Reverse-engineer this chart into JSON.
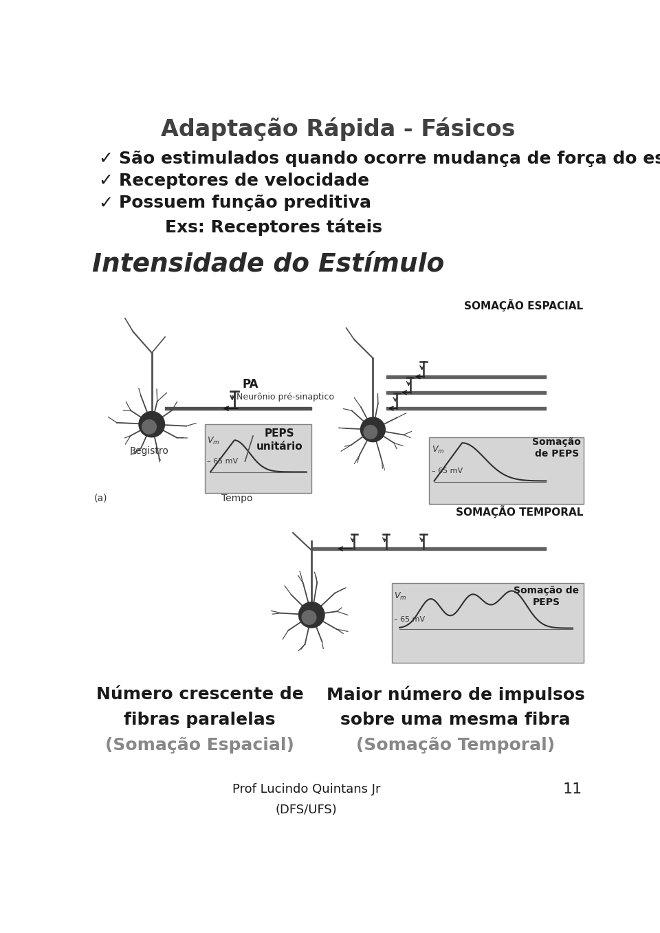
{
  "title": "Adaptação Rápida - Fásicos",
  "bullet1": "São estimulados quando ocorre mudança de força do estímulo",
  "bullet2": "Receptores de velocidade",
  "bullet3": "Possuem função preditiva",
  "sub_bullet": "Exs: Receptores táteis",
  "section_title": "Intensidade do Estímulo",
  "bottom_left_line1": "Número crescente de",
  "bottom_left_line2": "fibras paralelas",
  "bottom_left_line3": "(Somação Espacial)",
  "bottom_right_line1": "Maior número de impulsos",
  "bottom_right_line2": "sobre uma mesma fibra",
  "bottom_right_line3": "(Somação Temporal)",
  "footer1": "Prof Lucindo Quintans Jr",
  "footer2": "(DFS/UFS)",
  "page_num": "11",
  "bg_color": "#ffffff",
  "text_color": "#1a1a1a",
  "title_color": "#404040",
  "section_color": "#2a2a2a",
  "gray_color": "#888888",
  "diag_gray": "#b0b0b0",
  "diag_dark": "#505050",
  "diag_bg": "#d8d8d8"
}
